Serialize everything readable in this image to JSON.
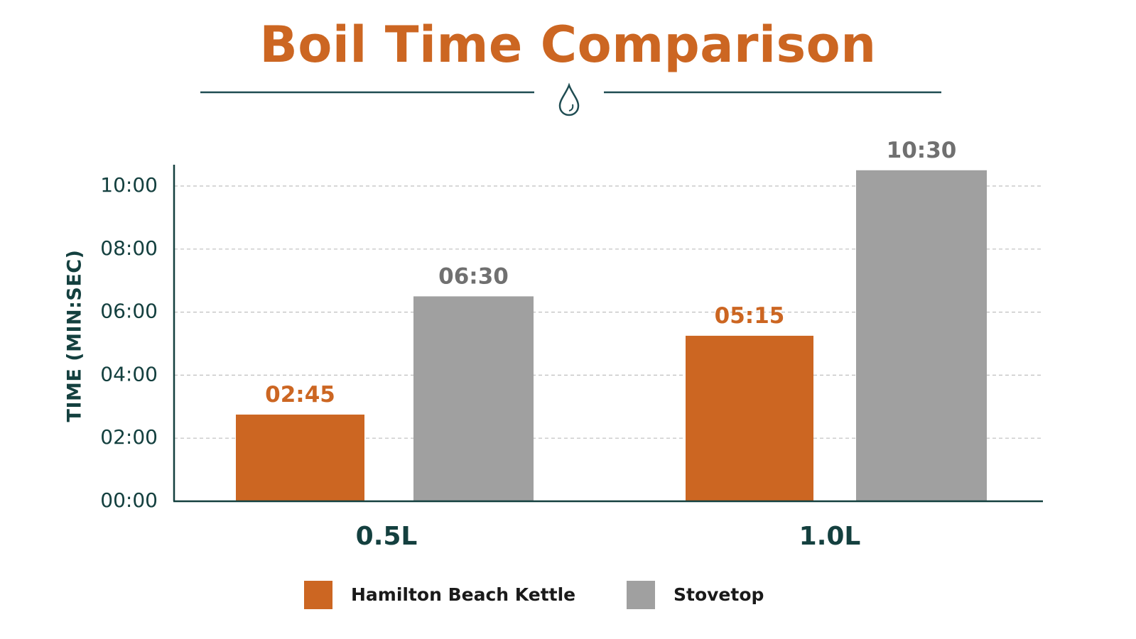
{
  "chart_data": {
    "type": "bar",
    "title": "Boil Time Comparison",
    "ylabel": "TIME (MIN:SEC)",
    "xlabel": "",
    "categories": [
      "0.5L",
      "1.0L"
    ],
    "y_unit": "minutes",
    "ylim": [
      0,
      10.5
    ],
    "yticks": [
      0,
      2,
      4,
      6,
      8,
      10
    ],
    "ytick_labels": [
      "00:00",
      "02:00",
      "04:00",
      "06:00",
      "08:00",
      "10:00"
    ],
    "grid": true,
    "legend_position": "bottom",
    "series": [
      {
        "name": "Hamilton Beach Kettle",
        "color": "#CC6622",
        "values": [
          2.75,
          5.25
        ],
        "labels": [
          "02:45",
          "05:15"
        ]
      },
      {
        "name": "Stovetop",
        "color": "#A0A0A0",
        "values": [
          6.5,
          10.5
        ],
        "labels": [
          "06:30",
          "10:30"
        ]
      }
    ],
    "colors": {
      "title": "#CC6622",
      "axis": "#14403F",
      "divider": "#1F4C52",
      "kettle_label": "#CC6622",
      "stovetop_label": "#707070",
      "grid": "#BFBFBF"
    },
    "decoration_icon": "water-drop-icon"
  }
}
